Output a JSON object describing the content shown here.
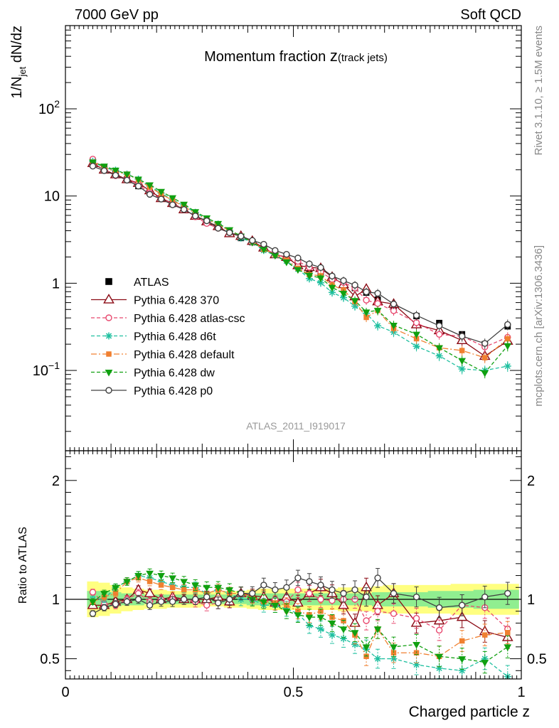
{
  "header": {
    "left": "7000 GeV pp",
    "right": "Soft QCD"
  },
  "side_text": {
    "top": "Rivet 3.1.10, ≥ 1.5M events",
    "bottom": "mcplots.cern.ch [arXiv:1306.3436]"
  },
  "chart_data": {
    "type": "line",
    "title": {
      "main": "Momentum fraction ",
      "var": "z",
      "sub": "(track jets)"
    },
    "analysis_label": "ATLAS_2011_I919017",
    "top_panel": {
      "ylabel": {
        "main": "1/N",
        "sub": "jet",
        "rest": " dN/dz"
      },
      "yscale": "log",
      "ylim": [
        0.012,
        900
      ],
      "y_ticks": [
        {
          "v": 0.1,
          "b": "10",
          "e": "−1"
        },
        {
          "v": 1,
          "b": "1",
          "e": ""
        },
        {
          "v": 10,
          "b": "10",
          "e": ""
        },
        {
          "v": 100,
          "b": "10",
          "e": "2"
        }
      ]
    },
    "ratio_panel": {
      "ylabel": "Ratio to ATLAS",
      "ylim": [
        0.33,
        2.25
      ],
      "y_ticks": [
        {
          "v": 0.5,
          "l": "0.5"
        },
        {
          "v": 1,
          "l": "1"
        },
        {
          "v": 2,
          "l": "2"
        }
      ]
    },
    "x_axis": {
      "label": "Charged particle z",
      "xlim": [
        0,
        1
      ],
      "ticks": [
        {
          "v": 0,
          "l": "0"
        },
        {
          "v": 0.5,
          "l": "0.5"
        },
        {
          "v": 1,
          "l": "1"
        }
      ]
    },
    "x": [
      0.06,
      0.085,
      0.11,
      0.135,
      0.16,
      0.185,
      0.21,
      0.235,
      0.26,
      0.285,
      0.31,
      0.335,
      0.36,
      0.385,
      0.41,
      0.435,
      0.46,
      0.485,
      0.51,
      0.535,
      0.56,
      0.585,
      0.61,
      0.635,
      0.66,
      0.685,
      0.72,
      0.77,
      0.82,
      0.87,
      0.92,
      0.97
    ],
    "x_half_widths": [
      0.0125,
      0.0125,
      0.0125,
      0.0125,
      0.0125,
      0.0125,
      0.0125,
      0.0125,
      0.0125,
      0.0125,
      0.0125,
      0.0125,
      0.0125,
      0.0125,
      0.0125,
      0.0125,
      0.0125,
      0.0125,
      0.0125,
      0.0125,
      0.0125,
      0.0125,
      0.0125,
      0.0125,
      0.0125,
      0.0125,
      0.025,
      0.025,
      0.025,
      0.025,
      0.025,
      0.025
    ],
    "data": {
      "name": "ATLAS",
      "values": [
        25.0,
        21.0,
        18.0,
        15.5,
        13.0,
        11.0,
        9.4,
        8.1,
        7.0,
        5.9,
        5.1,
        4.4,
        3.8,
        3.3,
        2.95,
        2.5,
        2.2,
        1.95,
        1.65,
        1.45,
        1.35,
        1.12,
        1.02,
        0.88,
        0.78,
        0.65,
        0.55,
        0.42,
        0.35,
        0.26,
        0.2,
        0.32
      ]
    },
    "band_inner": [
      0.07,
      0.07,
      0.06,
      0.05,
      0.05,
      0.04,
      0.04,
      0.04,
      0.04,
      0.04,
      0.04,
      0.04,
      0.04,
      0.04,
      0.05,
      0.05,
      0.05,
      0.05,
      0.05,
      0.05,
      0.05,
      0.05,
      0.05,
      0.05,
      0.05,
      0.06,
      0.06,
      0.06,
      0.07,
      0.07,
      0.08,
      0.08
    ],
    "band_outer": [
      0.15,
      0.14,
      0.12,
      0.1,
      0.09,
      0.08,
      0.08,
      0.07,
      0.07,
      0.07,
      0.06,
      0.06,
      0.07,
      0.07,
      0.08,
      0.09,
      0.09,
      0.09,
      0.09,
      0.09,
      0.09,
      0.09,
      0.1,
      0.1,
      0.1,
      0.11,
      0.12,
      0.12,
      0.12,
      0.13,
      0.13,
      0.13
    ],
    "series": [
      {
        "name": "Pythia 6.428 370",
        "color": "#8b0a14",
        "marker": "triangle",
        "dash": "",
        "ratio": [
          0.95,
          0.95,
          0.98,
          1.0,
          1.08,
          1.05,
          1.0,
          1.02,
          1.0,
          1.0,
          1.0,
          1.02,
          0.98,
          1.05,
          1.03,
          1.02,
          0.97,
          1.02,
          0.97,
          1.05,
          1.1,
          1.05,
          0.95,
          0.8,
          1.1,
          0.95,
          1.05,
          0.8,
          0.82,
          0.85,
          0.73,
          0.68
        ]
      },
      {
        "name": "Pythia 6.428 atlas-csc",
        "color": "#e8486e",
        "marker": "circle-open",
        "dash": "5,3",
        "ratio": [
          1.06,
          0.96,
          0.95,
          1.0,
          1.05,
          0.98,
          1.0,
          1.0,
          1.0,
          0.98,
          0.95,
          0.97,
          1.0,
          1.05,
          1.0,
          0.98,
          1.0,
          0.98,
          1.08,
          1.05,
          1.0,
          0.99,
          1.0,
          1.0,
          0.82,
          0.9,
          0.88,
          0.84,
          0.74,
          0.95,
          0.93,
          0.75
        ]
      },
      {
        "name": "Pythia 6.428 d6t",
        "color": "#20c0a0",
        "marker": "star",
        "dash": "5,3",
        "ratio": [
          1.0,
          1.0,
          1.1,
          1.15,
          1.2,
          1.18,
          1.15,
          1.12,
          1.1,
          1.1,
          1.05,
          1.08,
          1.05,
          1.0,
          1.0,
          0.95,
          0.95,
          0.92,
          0.88,
          0.78,
          0.75,
          0.7,
          0.67,
          0.62,
          0.58,
          0.5,
          0.5,
          0.45,
          0.42,
          0.4,
          0.5,
          0.35
        ]
      },
      {
        "name": "Pythia 6.428 default",
        "color": "#f08030",
        "marker": "square",
        "dash": "8,3,2,3",
        "ratio": [
          0.98,
          1.02,
          1.05,
          1.15,
          1.18,
          1.15,
          1.12,
          1.1,
          1.08,
          1.08,
          1.05,
          1.08,
          1.05,
          1.05,
          1.02,
          0.98,
          0.97,
          0.95,
          0.9,
          0.87,
          0.9,
          0.85,
          0.82,
          0.7,
          0.52,
          0.75,
          0.55,
          0.55,
          0.52,
          0.65,
          0.7,
          0.72
        ]
      },
      {
        "name": "Pythia 6.428 dw",
        "color": "#10a010",
        "marker": "triangle-down",
        "dash": "5,3",
        "ratio": [
          0.98,
          1.05,
          1.1,
          1.15,
          1.2,
          1.22,
          1.2,
          1.18,
          1.15,
          1.12,
          1.1,
          1.1,
          1.08,
          1.05,
          1.0,
          0.98,
          0.95,
          0.9,
          0.87,
          0.85,
          0.85,
          0.8,
          0.75,
          0.72,
          0.6,
          0.75,
          0.6,
          0.62,
          0.52,
          0.5,
          0.47,
          0.6
        ]
      },
      {
        "name": "Pythia 6.428 p0",
        "color": "#404040",
        "marker": "circle-open",
        "dash": "",
        "ratio": [
          0.88,
          0.93,
          0.96,
          0.98,
          1.0,
          0.95,
          0.98,
          0.98,
          1.0,
          1.0,
          1.02,
          0.97,
          1.0,
          1.05,
          1.05,
          1.12,
          1.08,
          1.1,
          1.18,
          1.15,
          1.12,
          1.08,
          1.05,
          1.08,
          1.02,
          1.18,
          1.05,
          1.02,
          0.93,
          0.95,
          1.02,
          1.05
        ]
      }
    ]
  }
}
